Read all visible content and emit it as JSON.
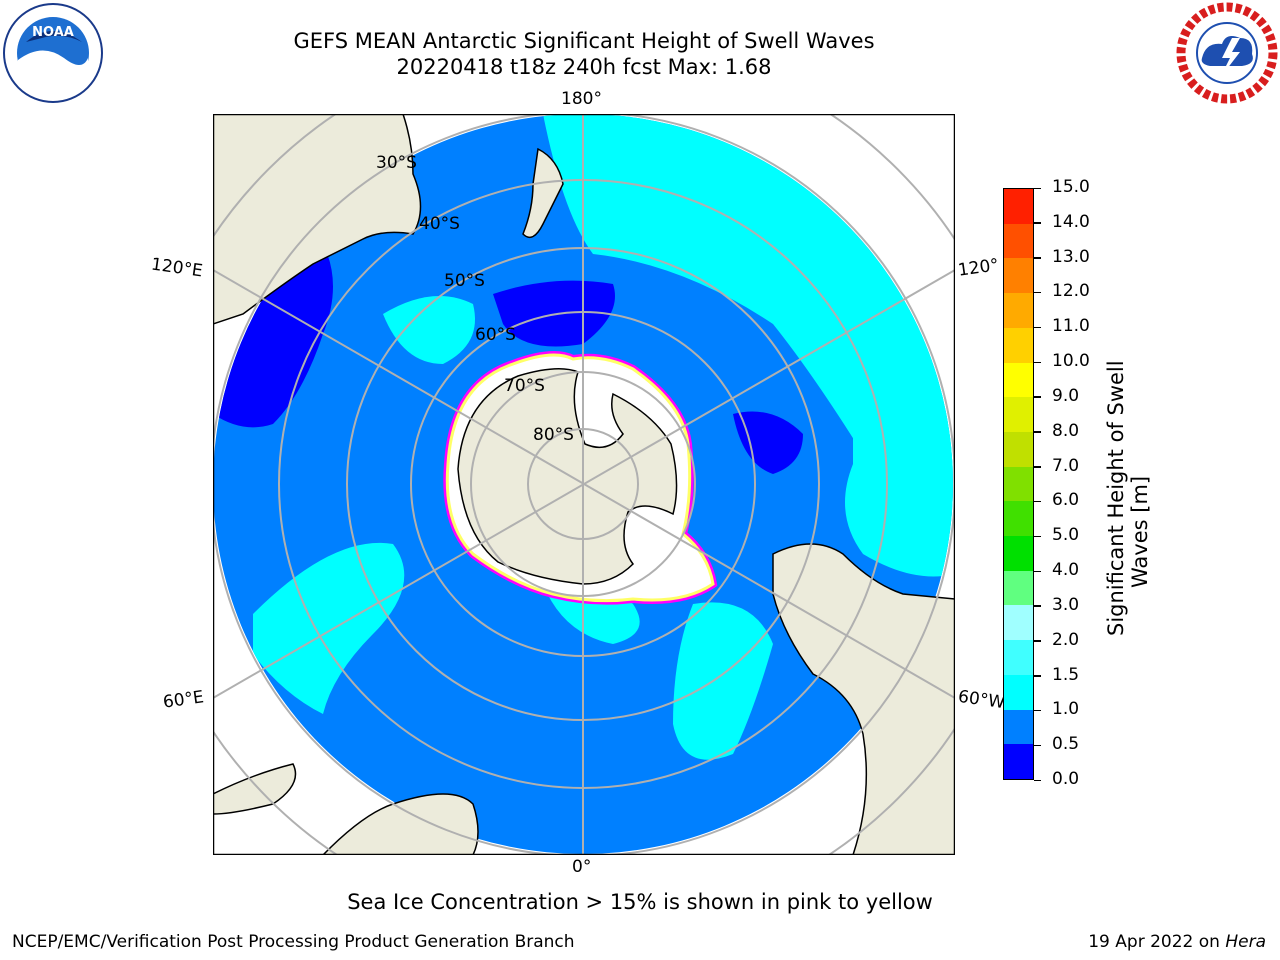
{
  "title": {
    "line1": "GEFS MEAN Antarctic Significant Height of Swell Waves",
    "line2": "20220418 t18z 240h fcst   Max: 1.68"
  },
  "logos": {
    "left": "noara-logo",
    "right": "nws-logo"
  },
  "map": {
    "projection": "south-polar-stereographic",
    "longitude_labels": {
      "top": "180°",
      "bottom": "0°",
      "left_upper": "120°E",
      "left_lower": "60°E",
      "right_upper": "120°",
      "right_lower": "60°W"
    },
    "latitude_labels": [
      "30°S",
      "40°S",
      "50°S",
      "60°S",
      "70°S",
      "80°S"
    ],
    "colors": {
      "land": "#ecebdb",
      "ice": "#ffffff",
      "swell_0_0.5": "#0000ff",
      "swell_0.5_1.0": "#0080ff",
      "swell_1.0_1.5": "#00ffff",
      "swell_1.5_2.0": "#40ffff",
      "sea_ice_edge": [
        "#ff00ff",
        "#ffff66",
        "#ffaa00"
      ]
    }
  },
  "colorbar": {
    "title_line1": "Significant Height of Swell",
    "title_line2": "Waves [m]",
    "ticks": [
      "0.0",
      "0.5",
      "1.0",
      "1.5",
      "2.0",
      "3.0",
      "4.0",
      "5.0",
      "6.0",
      "7.0",
      "8.0",
      "9.0",
      "10.0",
      "11.0",
      "12.0",
      "13.0",
      "14.0",
      "15.0"
    ],
    "colors": [
      "#0000ff",
      "#0080ff",
      "#00ffff",
      "#40ffff",
      "#a0ffff",
      "#60ff80",
      "#00e000",
      "#40e000",
      "#80e000",
      "#c0e000",
      "#e0f000",
      "#ffff00",
      "#ffd000",
      "#ffaa00",
      "#ff8000",
      "#ff5000",
      "#ff2000"
    ]
  },
  "note": "Sea Ice Concentration > 15% is shown in pink to yellow",
  "footer": {
    "left": "NCEP/EMC/Verification Post Processing Product Generation Branch",
    "right_prefix": "19 Apr 2022 on ",
    "right_host": "Hera"
  }
}
